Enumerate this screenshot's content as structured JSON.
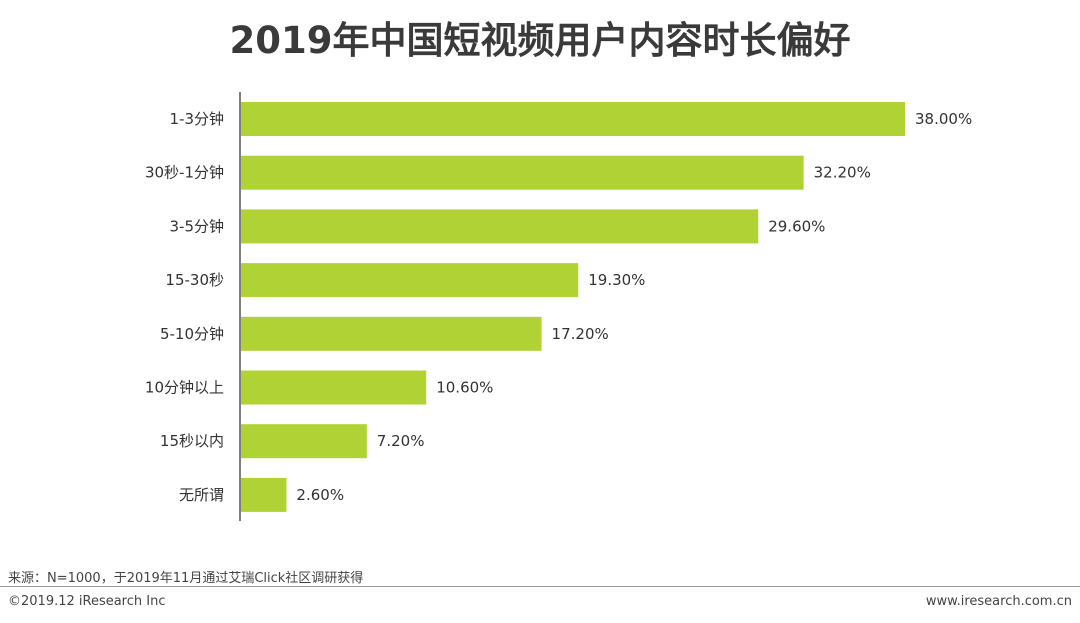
{
  "title": "2019年中国短视频用户内容时长偏好",
  "chart_data": {
    "type": "bar",
    "orientation": "horizontal",
    "categories": [
      "1-3分钟",
      "30秒-1分钟",
      "3-5分钟",
      "15-30秒",
      "5-10分钟",
      "10分钟以上",
      "15秒以内",
      "无所谓"
    ],
    "values": [
      38.0,
      32.2,
      29.6,
      19.3,
      17.2,
      10.6,
      7.2,
      2.6
    ],
    "value_labels": [
      "38.00%",
      "32.20%",
      "29.60%",
      "19.30%",
      "17.20%",
      "10.60%",
      "7.20%",
      "2.60%"
    ],
    "unit": "%",
    "bar_color": "#b0d234",
    "xlim": [
      0,
      38
    ],
    "grid": false,
    "legend": "none"
  },
  "footer": {
    "source": "来源：N=1000，于2019年11月通过艾瑞Click社区调研获得",
    "copyright": "©2019.12 iResearch Inc",
    "website": "www.iresearch.com.cn"
  }
}
